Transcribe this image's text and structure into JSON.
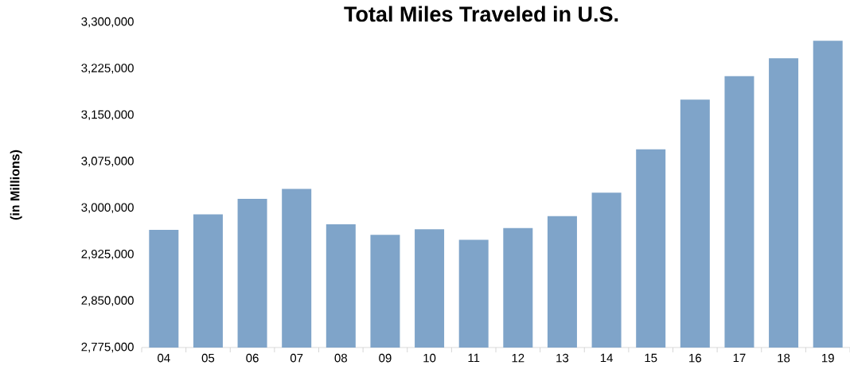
{
  "chart_data": {
    "type": "bar",
    "title": "Total Miles Traveled in U.S.",
    "ylabel": "(in Millions)",
    "categories": [
      "04",
      "05",
      "06",
      "07",
      "08",
      "09",
      "10",
      "11",
      "12",
      "13",
      "14",
      "15",
      "16",
      "17",
      "18",
      "19"
    ],
    "values": [
      2965000,
      2990000,
      3015000,
      3031000,
      2974000,
      2957000,
      2966000,
      2949000,
      2968000,
      2987000,
      3025000,
      3095000,
      3175000,
      3213000,
      3242000,
      3270000
    ],
    "color": "#7fa4c9",
    "ylim": [
      2775000,
      3300000
    ],
    "yticks": [
      {
        "value": 2775000,
        "label": "2,775,000"
      },
      {
        "value": 2850000,
        "label": "2,850,000"
      },
      {
        "value": 2925000,
        "label": "2,925,000"
      },
      {
        "value": 3000000,
        "label": "3,000,000"
      },
      {
        "value": 3075000,
        "label": "3,075,000"
      },
      {
        "value": 3150000,
        "label": "3,150,000"
      },
      {
        "value": 3225000,
        "label": "3,225,000"
      },
      {
        "value": 3300000,
        "label": "3,300,000"
      }
    ],
    "xlabel": null
  }
}
